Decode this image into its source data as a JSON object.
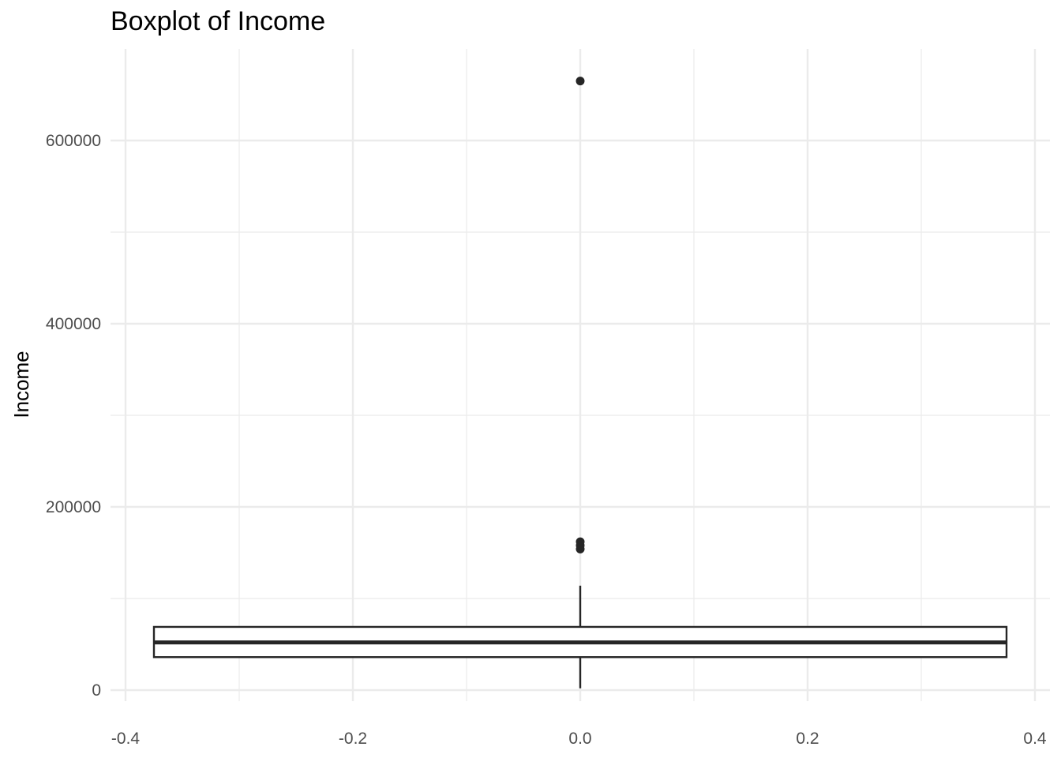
{
  "chart_data": {
    "type": "boxplot",
    "title": "Boxplot of Income",
    "xlabel": "",
    "ylabel": "Income",
    "xlim": [
      -0.4,
      0.4
    ],
    "ylim": [
      0,
      700000
    ],
    "x_ticks": [
      -0.4,
      -0.2,
      0.0,
      0.2,
      0.4
    ],
    "x_tick_labels": [
      "-0.4",
      "-0.2",
      "0.0",
      "0.2",
      "0.4"
    ],
    "y_ticks": [
      0,
      200000,
      400000,
      600000
    ],
    "y_tick_labels": [
      "0",
      "200000",
      "400000",
      "600000"
    ],
    "grid": true,
    "box": {
      "x": 0.0,
      "width": 0.75,
      "whisker_low": 2000,
      "q1": 36000,
      "median": 52000,
      "q3": 69000,
      "whisker_high": 114000
    },
    "outliers": [
      {
        "x": 0.0,
        "y": 154000
      },
      {
        "x": 0.0,
        "y": 158000
      },
      {
        "x": 0.0,
        "y": 162000
      },
      {
        "x": 0.0,
        "y": 665000
      }
    ],
    "colors": {
      "box_line": "#262626",
      "grid": "#ebebeb",
      "tick_text": "#4d4d4d"
    }
  }
}
